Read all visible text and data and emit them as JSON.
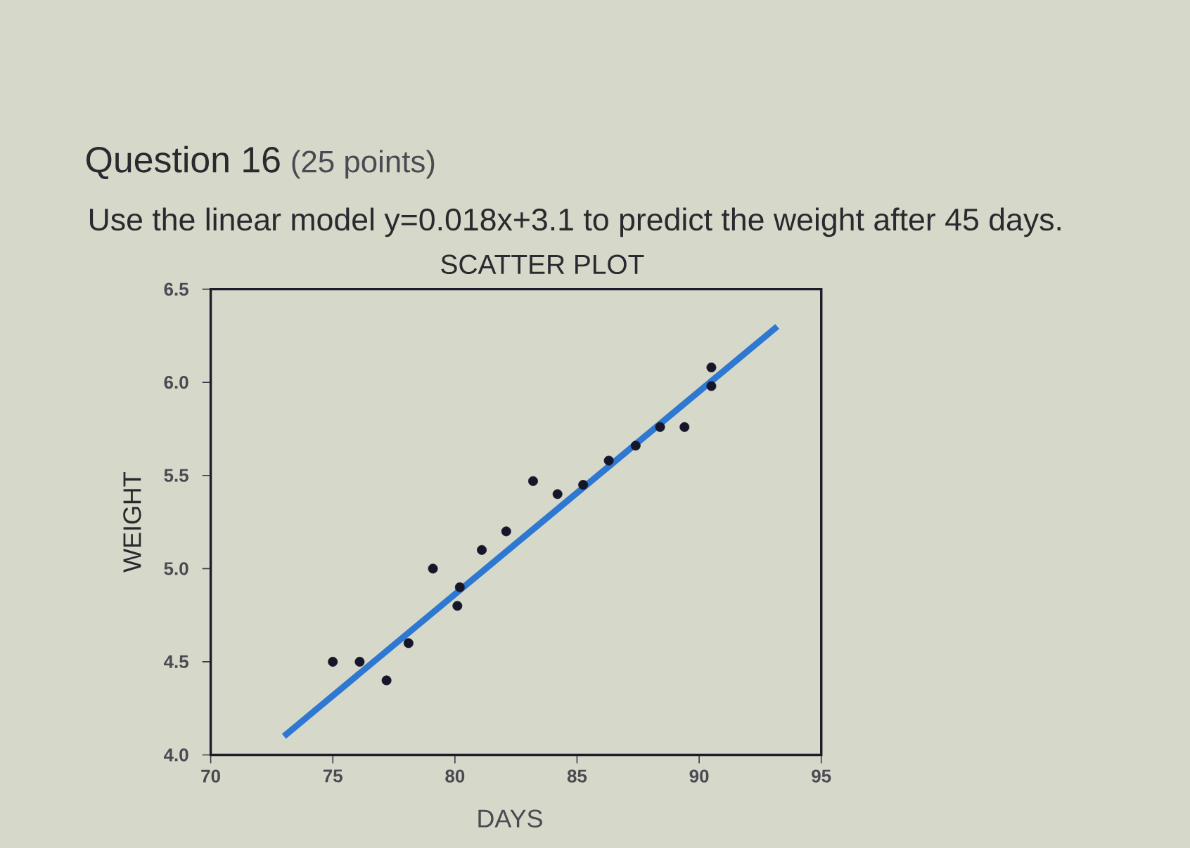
{
  "chart_data": {
    "type": "scatter",
    "title": "SCATTER PLOT",
    "xlabel": "DAYS",
    "ylabel": "WEIGHT",
    "annotations": [
      "Question 16",
      "(25 points)",
      "Use the linear model y=0.018x+3.1 to predict the weight after 45 days."
    ],
    "xlim": [
      70,
      95
    ],
    "xticks": [
      70,
      75,
      80,
      85,
      90,
      95
    ],
    "ylim": [
      4.0,
      6.5
    ],
    "yticks": [
      {
        "value": 4,
        "label": "4.0"
      },
      4.5,
      {
        "value": 5,
        "label": "5.0"
      },
      5.5,
      {
        "value": 6,
        "label": "6.0"
      },
      6.5
    ],
    "series": [
      {
        "marker": "circle",
        "color": "#16162a",
        "x": [
          75.0,
          76.1,
          77.2,
          78.1,
          79.1,
          80.2,
          80.1,
          81.1,
          82.1,
          83.2,
          84.2,
          85.25,
          86.3,
          87.4,
          88.4,
          89.4,
          90.5,
          90.5
        ],
        "values": [
          4.5,
          4.5,
          4.4,
          4.6,
          5.0,
          4.9,
          4.8,
          5.1,
          5.2,
          5.47,
          5.4,
          5.45,
          5.58,
          5.66,
          5.76,
          5.76,
          6.08,
          5.98
        ]
      },
      {
        "type": "line",
        "color": "#2e78d2",
        "x": [
          73.0,
          93.2
        ],
        "values": [
          4.1,
          6.3
        ]
      }
    ]
  }
}
